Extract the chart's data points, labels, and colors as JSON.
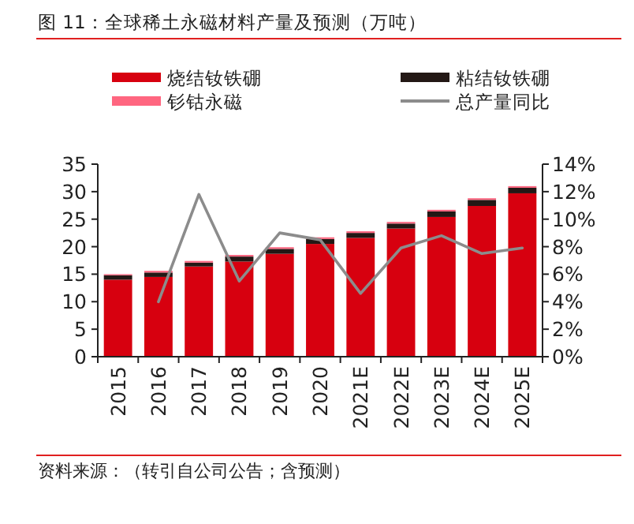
{
  "chart_data": {
    "type": "bar",
    "title": "图 11：全球稀土永磁材料产量及预测（万吨）",
    "categories": [
      "2015",
      "2016",
      "2017",
      "2018",
      "2019",
      "2020",
      "2021E",
      "2022E",
      "2023E",
      "2024E",
      "2025E"
    ],
    "stacked": true,
    "legend": "top",
    "grid": false,
    "series": [
      {
        "name": "烧结钕铁硼",
        "color": "#d7000f",
        "values": [
          14.0,
          14.5,
          16.4,
          17.3,
          18.7,
          20.5,
          21.6,
          23.3,
          25.4,
          27.4,
          29.7
        ]
      },
      {
        "name": "粘结钕铁硼",
        "color": "#231815",
        "values": [
          0.8,
          0.8,
          0.7,
          0.9,
          0.9,
          0.9,
          0.9,
          0.9,
          1.0,
          1.1,
          1.0
        ]
      },
      {
        "name": "钐钴永磁",
        "color": "#ff6680",
        "values": [
          0.2,
          0.3,
          0.3,
          0.3,
          0.3,
          0.3,
          0.3,
          0.3,
          0.3,
          0.3,
          0.3
        ]
      },
      {
        "name": "总产量同比",
        "color": "#8c8c8c",
        "type": "line",
        "axis": "y2",
        "values": [
          null,
          4.0,
          11.8,
          5.5,
          9.0,
          8.5,
          4.6,
          7.9,
          8.8,
          7.5,
          7.9
        ]
      }
    ],
    "ylim": [
      0,
      35
    ],
    "yticks": [
      0,
      5,
      10,
      15,
      20,
      25,
      30,
      35
    ],
    "y2lim": [
      0,
      14
    ],
    "y2ticks": [
      {
        "value": 0,
        "label": "0%"
      },
      {
        "value": 2,
        "label": "2%"
      },
      {
        "value": 4,
        "label": "4%"
      },
      {
        "value": 6,
        "label": "6%"
      },
      {
        "value": 8,
        "label": "8%"
      },
      {
        "value": 10,
        "label": "10%"
      },
      {
        "value": 12,
        "label": "12%"
      },
      {
        "value": 14,
        "label": "14%"
      }
    ],
    "annotations": [
      "资料来源：（转引自公司公告；含预测）"
    ]
  }
}
